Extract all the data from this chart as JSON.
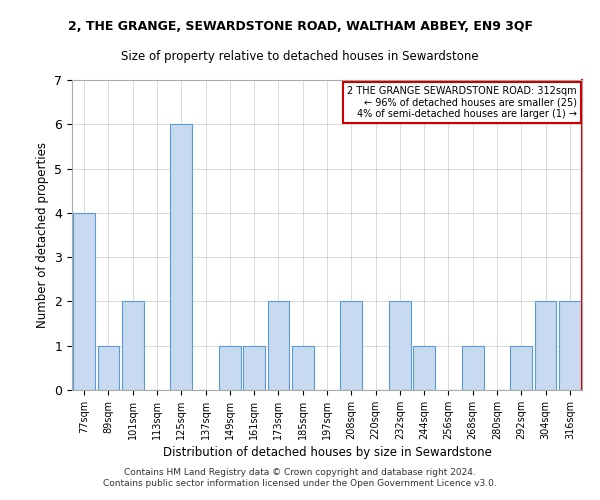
{
  "title": "2, THE GRANGE, SEWARDSTONE ROAD, WALTHAM ABBEY, EN9 3QF",
  "subtitle": "Size of property relative to detached houses in Sewardstone",
  "xlabel": "Distribution of detached houses by size in Sewardstone",
  "ylabel": "Number of detached properties",
  "categories": [
    "77sqm",
    "89sqm",
    "101sqm",
    "113sqm",
    "125sqm",
    "137sqm",
    "149sqm",
    "161sqm",
    "173sqm",
    "185sqm",
    "197sqm",
    "208sqm",
    "220sqm",
    "232sqm",
    "244sqm",
    "256sqm",
    "268sqm",
    "280sqm",
    "292sqm",
    "304sqm",
    "316sqm"
  ],
  "values": [
    4,
    1,
    2,
    0,
    6,
    0,
    1,
    1,
    2,
    1,
    0,
    2,
    0,
    2,
    1,
    0,
    1,
    0,
    1,
    2,
    2
  ],
  "bar_color": "#c8daf0",
  "bar_edge_color": "#5a9bd4",
  "highlight_line_color": "#cc0000",
  "annotation_title": "2 THE GRANGE SEWARDSTONE ROAD: 312sqm",
  "annotation_line1": "← 96% of detached houses are smaller (25)",
  "annotation_line2": "4% of semi-detached houses are larger (1) →",
  "annotation_box_color": "#cc0000",
  "ylim": [
    0,
    7
  ],
  "yticks": [
    0,
    1,
    2,
    3,
    4,
    5,
    6,
    7
  ],
  "footer1": "Contains HM Land Registry data © Crown copyright and database right 2024.",
  "footer2": "Contains public sector information licensed under the Open Government Licence v3.0.",
  "title_fontsize": 9,
  "subtitle_fontsize": 8.5
}
